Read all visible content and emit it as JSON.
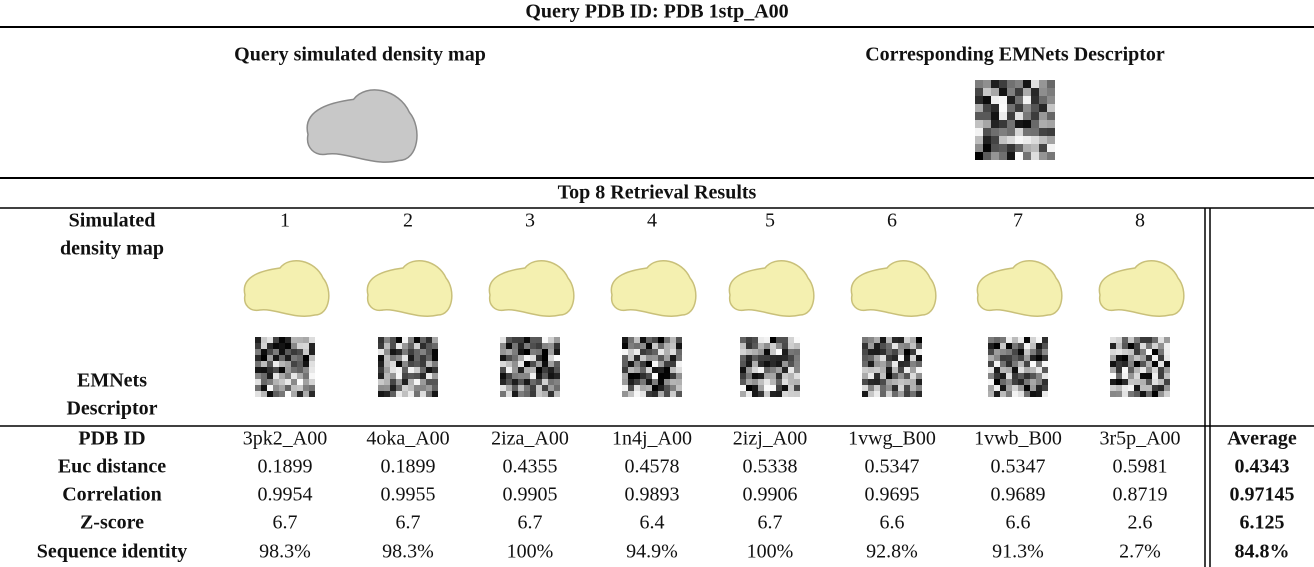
{
  "title": "Query PDB ID: PDB 1stp_A00",
  "query": {
    "map_label": "Query simulated density map",
    "descriptor_label": "Corresponding EMNets Descriptor"
  },
  "section_title": "Top 8 Retrieval Results",
  "map_row_label": [
    "Simulated",
    "density map"
  ],
  "descriptor_row_label": [
    "EMNets",
    "Descriptor"
  ],
  "ranks": [
    1,
    2,
    3,
    4,
    5,
    6,
    7,
    8
  ],
  "table": {
    "header": [
      "PDB ID",
      "3pk2_A00",
      "4oka_A00",
      "2iza_A00",
      "1n4j_A00",
      "2izj_A00",
      "1vwg_B00",
      "1vwb_B00",
      "3r5p_A00",
      "Average"
    ],
    "rows": [
      [
        "Euc distance",
        "0.1899",
        "0.1899",
        "0.4355",
        "0.4578",
        "0.5338",
        "0.5347",
        "0.5347",
        "0.5981",
        "0.4343"
      ],
      [
        "Correlation",
        "0.9954",
        "0.9955",
        "0.9905",
        "0.9893",
        "0.9906",
        "0.9695",
        "0.9689",
        "0.8719",
        "0.97145"
      ],
      [
        "Z-score",
        "6.7",
        "6.7",
        "6.7",
        "6.4",
        "6.7",
        "6.6",
        "6.6",
        "2.6",
        "6.125"
      ],
      [
        "Sequence identity",
        "98.3%",
        "98.3%",
        "100%",
        "94.9%",
        "100%",
        "92.8%",
        "91.3%",
        "2.7%",
        "84.8%"
      ]
    ]
  }
}
